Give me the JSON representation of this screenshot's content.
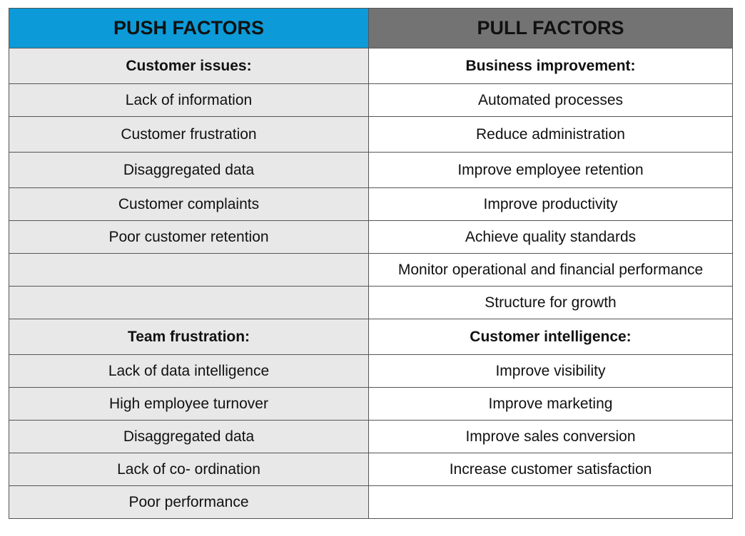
{
  "header": {
    "push": "PUSH FACTORS",
    "pull": "PULL FACTORS",
    "push_color": "#0c9bd8",
    "pull_color": "#737373"
  },
  "rows": [
    {
      "push": "Customer issues:",
      "pull": "Business improvement:",
      "bold": true
    },
    {
      "push": "Lack of information",
      "pull": "Automated processes"
    },
    {
      "push": "Customer frustration",
      "pull": "Reduce administration"
    },
    {
      "push": "Disaggregated data",
      "pull": "Improve employee retention"
    },
    {
      "push": "Customer complaints",
      "pull": "Improve productivity"
    },
    {
      "push": "Poor customer retention",
      "pull": "Achieve quality standards"
    },
    {
      "push": "",
      "pull": "Monitor operational and financial performance"
    },
    {
      "push": "",
      "pull": "Structure for growth"
    },
    {
      "push": "Team frustration:",
      "pull": "Customer intelligence:",
      "bold": true
    },
    {
      "push": "Lack of data intelligence",
      "pull": "Improve visibility"
    },
    {
      "push": "High employee turnover",
      "pull": "Improve marketing"
    },
    {
      "push": "Disaggregated data",
      "pull": "Improve sales conversion"
    },
    {
      "push": "Lack of co- ordination",
      "pull": "Increase customer satisfaction"
    },
    {
      "push": "Poor performance",
      "pull": ""
    }
  ]
}
